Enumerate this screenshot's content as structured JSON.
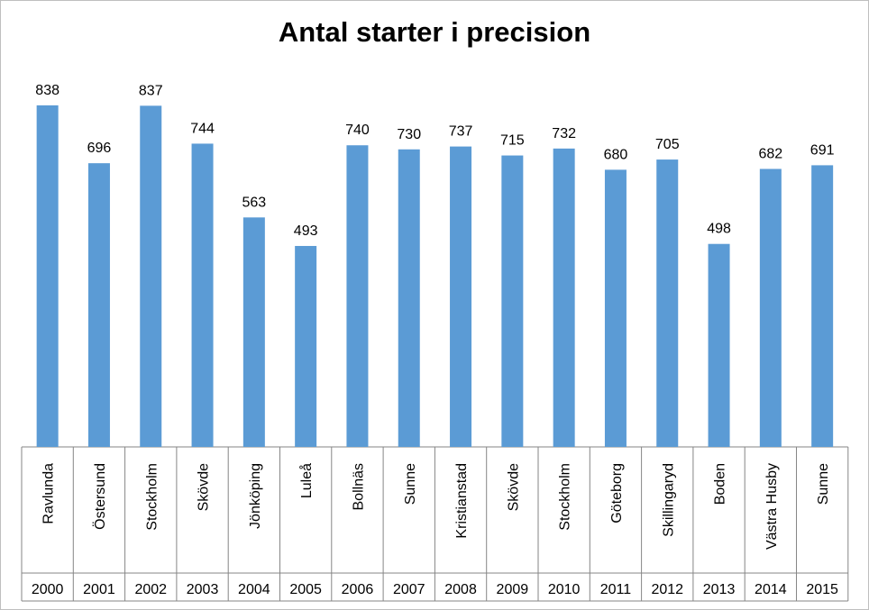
{
  "chart_data": {
    "type": "bar",
    "title": "Antal starter i precision",
    "categories": [
      {
        "venue": "Ravlunda",
        "year": "2000"
      },
      {
        "venue": "Östersund",
        "year": "2001"
      },
      {
        "venue": "Stockholm",
        "year": "2002"
      },
      {
        "venue": "Skövde",
        "year": "2003"
      },
      {
        "venue": "Jönköping",
        "year": "2004"
      },
      {
        "venue": "Luleå",
        "year": "2005"
      },
      {
        "venue": "Bollnäs",
        "year": "2006"
      },
      {
        "venue": "Sunne",
        "year": "2007"
      },
      {
        "venue": "Kristianstad",
        "year": "2008"
      },
      {
        "venue": "Skövde",
        "year": "2009"
      },
      {
        "venue": "Stockholm",
        "year": "2010"
      },
      {
        "venue": "Göteborg",
        "year": "2011"
      },
      {
        "venue": "Skillingaryd",
        "year": "2012"
      },
      {
        "venue": "Boden",
        "year": "2013"
      },
      {
        "venue": "Västra Husby",
        "year": "2014"
      },
      {
        "venue": "Sunne",
        "year": "2015"
      }
    ],
    "values": [
      838,
      696,
      837,
      744,
      563,
      493,
      740,
      730,
      737,
      715,
      732,
      680,
      705,
      498,
      682,
      691
    ],
    "ylim": [
      0,
      840
    ],
    "data_labels": true,
    "grid": false,
    "legend": "none",
    "bar_color": "#5b9bd5"
  }
}
